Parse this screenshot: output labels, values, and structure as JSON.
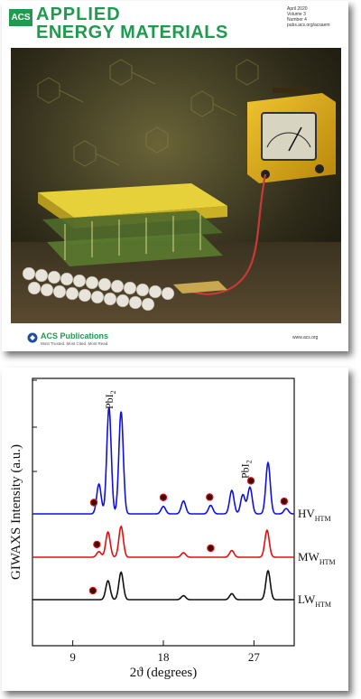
{
  "cover": {
    "acs_box": "ACS",
    "journal_line1": "APPLIED",
    "journal_line2": "ENERGY MATERIALS",
    "issue_lines": [
      "April 2020",
      "Volume 3",
      "Number 4",
      "pubs.acs.org/acsaem"
    ],
    "publisher": "ACS Publications",
    "publisher_tagline": "Most Trusted. Most Cited. Most Read.",
    "url": "www.acs.org",
    "colors": {
      "brand_green": "#1f9a4f"
    }
  },
  "chart_data": {
    "type": "line",
    "xlabel": "2ϑ (degrees)",
    "ylabel": "GIWAXS Intensity (a.u.)",
    "xlim": [
      5,
      31
    ],
    "x_ticks": [
      9,
      18,
      27
    ],
    "x_tick_labels": [
      "9",
      "18",
      "27"
    ],
    "series": [
      {
        "name": "HV",
        "name_sub": "HTM",
        "color": "#1111dd",
        "baseline": 0,
        "peaks": [
          [
            11.6,
            0.28
          ],
          [
            12.6,
            1.0
          ],
          [
            13.8,
            0.96
          ],
          [
            18.0,
            0.07
          ],
          [
            20.0,
            0.12
          ],
          [
            22.7,
            0.08
          ],
          [
            24.8,
            0.22
          ],
          [
            25.9,
            0.18
          ],
          [
            26.6,
            0.25
          ],
          [
            28.4,
            0.48
          ],
          [
            30.2,
            0.05
          ]
        ],
        "markers": [
          11.1,
          18.0,
          22.6,
          26.7,
          30.0
        ]
      },
      {
        "name": "MW",
        "name_sub": "HTM",
        "color": "#dd1111",
        "baseline": 0,
        "peaks": [
          [
            11.6,
            0.1
          ],
          [
            12.5,
            0.45
          ],
          [
            13.8,
            0.55
          ],
          [
            20.0,
            0.08
          ],
          [
            24.8,
            0.12
          ],
          [
            28.3,
            0.48
          ]
        ],
        "markers": [
          11.4,
          22.7
        ]
      },
      {
        "name": "LW",
        "name_sub": "HTM",
        "color": "#111111",
        "baseline": 0,
        "peaks": [
          [
            12.5,
            0.38
          ],
          [
            13.8,
            0.55
          ],
          [
            20.0,
            0.08
          ],
          [
            24.8,
            0.12
          ],
          [
            28.4,
            0.58
          ]
        ],
        "markers": [
          11.0
        ]
      }
    ],
    "annotations": [
      {
        "text": "PbI",
        "sub": "2",
        "x": 12.6
      },
      {
        "text": "PbI",
        "sub": "2",
        "x": 26.1
      }
    ]
  }
}
